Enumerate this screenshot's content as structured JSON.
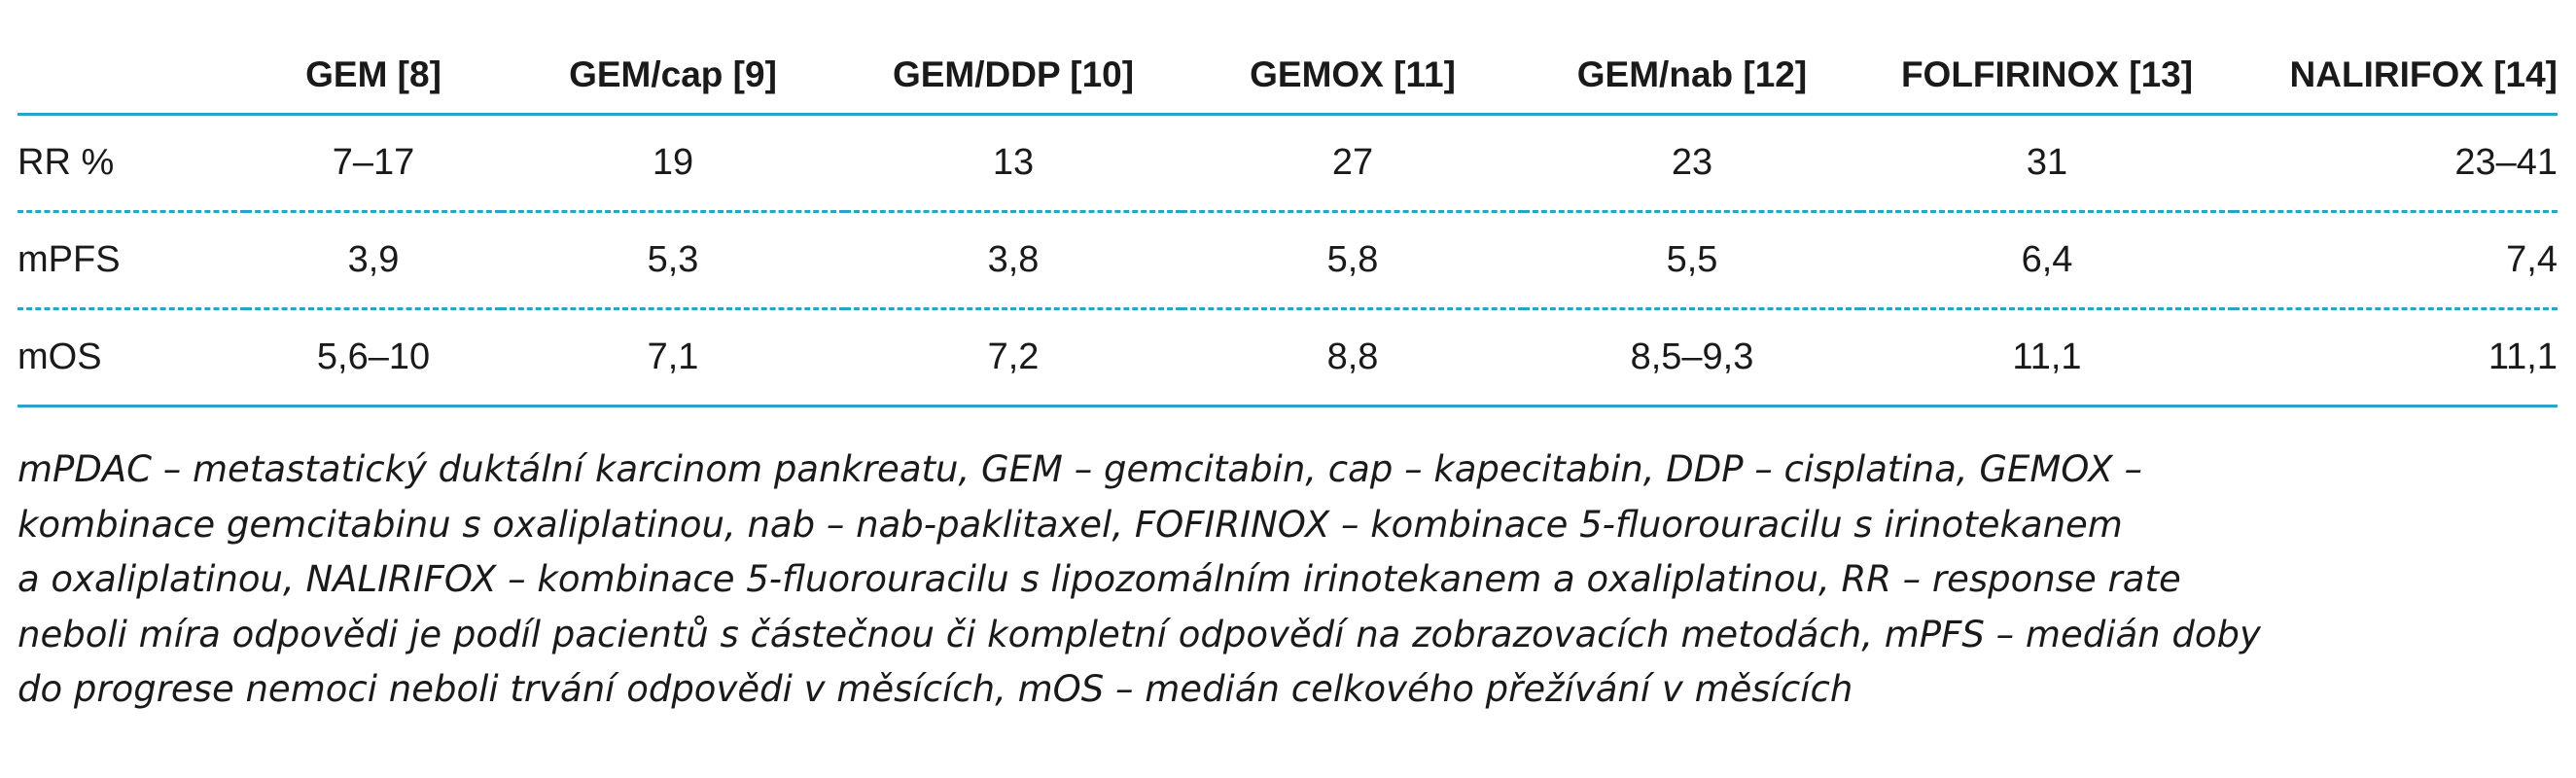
{
  "table": {
    "columns": [
      "",
      "GEM [8]",
      "GEM/cap [9]",
      "GEM/DDP [10]",
      "GEMOX [11]",
      "GEM/nab [12]",
      "FOLFIRINOX [13]",
      "NALIRIFOX [14]"
    ],
    "rows": [
      {
        "label": "RR %",
        "values": [
          "7–17",
          "19",
          "13",
          "27",
          "23",
          "31",
          "23–41"
        ]
      },
      {
        "label": "mPFS",
        "values": [
          "3,9",
          "5,3",
          "3,8",
          "5,8",
          "5,5",
          "6,4",
          "7,4"
        ]
      },
      {
        "label": "mOS",
        "values": [
          "5,6–10",
          "7,1",
          "7,2",
          "8,8",
          "8,5–9,3",
          "11,1",
          "11,1"
        ]
      }
    ]
  },
  "footnote": {
    "lines": [
      "mPDAC – metastatický duktální karcinom pankreatu, GEM – gemcitabin, cap – kapecitabin, DDP – cisplatina, GEMOX –",
      "kombinace gemcitabinu s oxaliplatinou, nab – nab-paklitaxel, FOFIRINOX – kombinace 5-fluorouracilu s irinotekanem",
      "a oxaliplatinou, NALIRIFOX – kombinace 5-fluorouracilu s lipozomálním irinotekanem a oxaliplatinou, RR – response rate",
      "neboli míra odpovědi je podíl pacientů s částečnou či kompletní odpovědí na zobrazovacích metodách, mPFS – medián doby",
      "do progrese nemoci neboli trvání odpovědi v měsících, mOS – medián celkového přežívání v měsících"
    ]
  },
  "colors": {
    "rule": "#2aa3c6",
    "text": "#1a1a1a"
  }
}
